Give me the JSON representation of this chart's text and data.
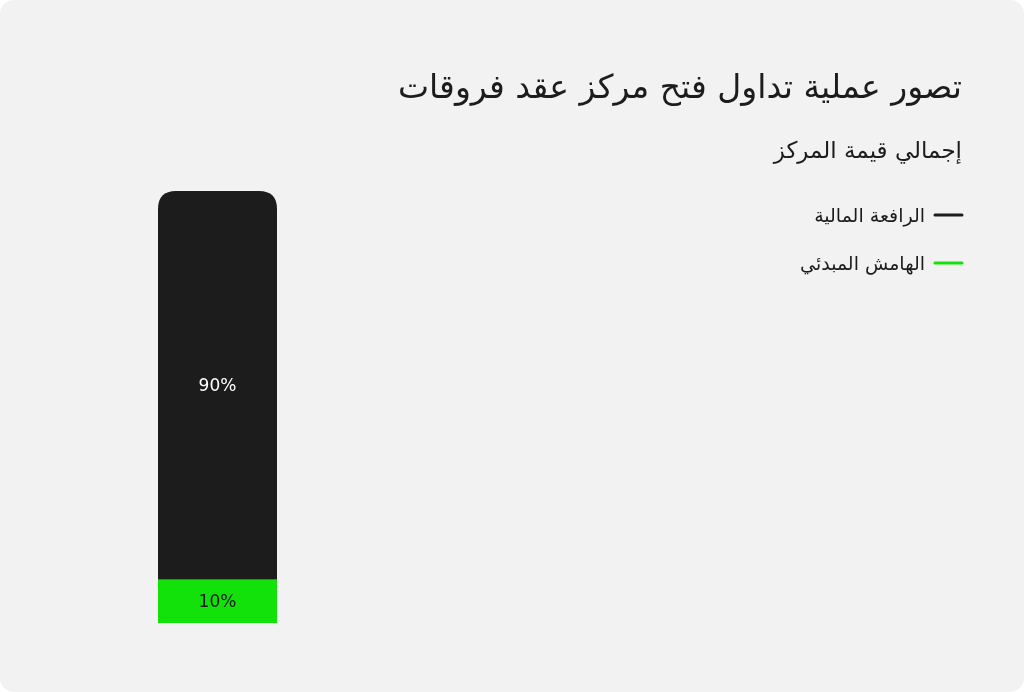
{
  "chart_data": {
    "type": "bar",
    "title": "تصور عملية تداول فتح مركز عقد فروقات",
    "subtitle": "إجمالي قيمة المركز",
    "categories": [
      null
    ],
    "stacked": true,
    "legend": "top right",
    "series": [
      {
        "name": "الهامش المبدئي",
        "color": "#12e10a",
        "values": [
          10
        ],
        "value_labels": [
          "10%"
        ]
      },
      {
        "name": "الرافعة المالية",
        "color": "#1c1c1c",
        "values": [
          90
        ],
        "value_labels": [
          "90%"
        ]
      }
    ]
  }
}
